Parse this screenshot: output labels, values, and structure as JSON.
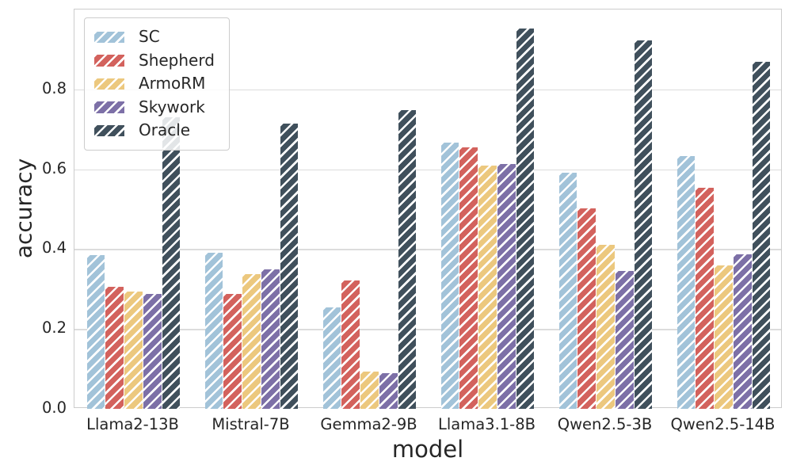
{
  "chart_data": {
    "type": "bar",
    "title": "",
    "xlabel": "model",
    "ylabel": "accuracy",
    "categories": [
      "Llama2-13B",
      "Mistral-7B",
      "Gemma2-9B",
      "Llama3.1-8B",
      "Qwen2.5-3B",
      "Qwen2.5-14B"
    ],
    "series": [
      {
        "name": "SC",
        "color": "#a2c3d9",
        "values": [
          0.385,
          0.39,
          0.254,
          0.666,
          0.591,
          0.633
        ]
      },
      {
        "name": "Shepherd",
        "color": "#d3625d",
        "values": [
          0.305,
          0.287,
          0.322,
          0.655,
          0.501,
          0.554
        ]
      },
      {
        "name": "ArmoRM",
        "color": "#ecc87e",
        "values": [
          0.293,
          0.337,
          0.094,
          0.61,
          0.411,
          0.36
        ]
      },
      {
        "name": "Skywork",
        "color": "#7d70a7",
        "values": [
          0.288,
          0.349,
          0.09,
          0.613,
          0.346,
          0.386
        ]
      },
      {
        "name": "Oracle",
        "color": "#40505c",
        "values": [
          0.73,
          0.715,
          0.748,
          0.953,
          0.922,
          0.87
        ]
      }
    ],
    "ylim": [
      0,
      1.0
    ],
    "yticks": [
      0.0,
      0.2,
      0.4,
      0.6,
      0.8
    ],
    "ytick_labels": [
      "0.0",
      "0.2",
      "0.4",
      "0.6",
      "0.8"
    ],
    "grid": "horizontal",
    "legend_position": "upper-left",
    "hatch": "/",
    "hatch_color": "#ffffff"
  }
}
